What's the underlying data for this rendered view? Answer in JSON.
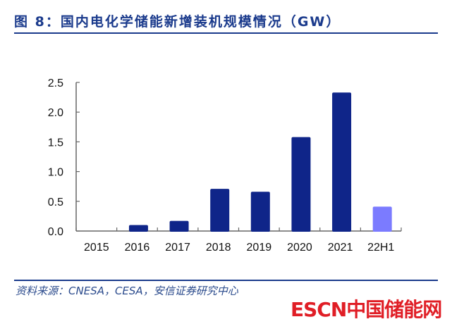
{
  "header": {
    "title": "图 8：国内电化学储能新增装机规模情况（GW）"
  },
  "footer": {
    "source": "资料来源：CNESA，CESA，安信证券研究中心",
    "watermark": "ESCN中国储能网"
  },
  "colors": {
    "bar": "#0f2589",
    "bar_highlight": "#7b7bff",
    "title": "#1a3a8c",
    "watermark": "#e01e26"
  },
  "chart_data": {
    "type": "bar",
    "title": "国内电化学储能新增装机规模情况（GW）",
    "xlabel": "",
    "ylabel": "",
    "categories": [
      "2015",
      "2016",
      "2017",
      "2018",
      "2019",
      "2020",
      "2021",
      "22H1"
    ],
    "values": [
      0,
      0.1,
      0.17,
      0.71,
      0.66,
      1.58,
      2.33,
      0.41
    ],
    "highlight": [
      "22H1"
    ],
    "ylim": [
      0,
      2.5
    ],
    "yticks": [
      "0.0",
      "0.5",
      "1.0",
      "1.5",
      "2.0",
      "2.5"
    ],
    "grid": false,
    "legend": "none"
  }
}
